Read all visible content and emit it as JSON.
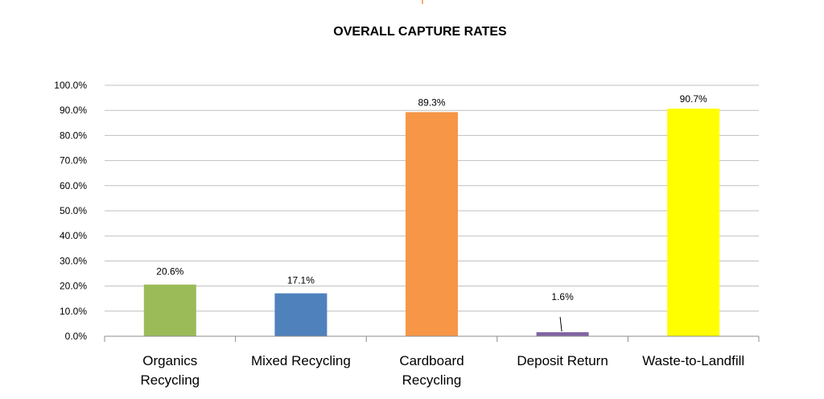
{
  "chart_data": {
    "type": "bar",
    "title": "OVERALL CAPTURE RATES",
    "xlabel": "",
    "ylabel": "",
    "categories": [
      [
        "Organics",
        "Recycling"
      ],
      [
        "Mixed Recycling"
      ],
      [
        "Cardboard",
        "Recycling"
      ],
      [
        "Deposit Return"
      ],
      [
        "Waste-to-Landfill"
      ]
    ],
    "values": [
      20.6,
      17.1,
      89.3,
      1.6,
      90.7
    ],
    "data_labels": [
      "20.6%",
      "17.1%",
      "89.3%",
      "1.6%",
      "90.7%"
    ],
    "colors": [
      "#9bbb59",
      "#4f81bd",
      "#f79646",
      "#8064a2",
      "#ffff00"
    ],
    "ylim": [
      0,
      100
    ],
    "yticks": [
      0,
      10,
      20,
      30,
      40,
      50,
      60,
      70,
      80,
      90,
      100
    ],
    "ytick_labels": [
      "0.0%",
      "10.0%",
      "20.0%",
      "30.0%",
      "40.0%",
      "50.0%",
      "60.0%",
      "70.0%",
      "80.0%",
      "90.0%",
      "100.0%"
    ],
    "grid": true,
    "legend": "none"
  }
}
